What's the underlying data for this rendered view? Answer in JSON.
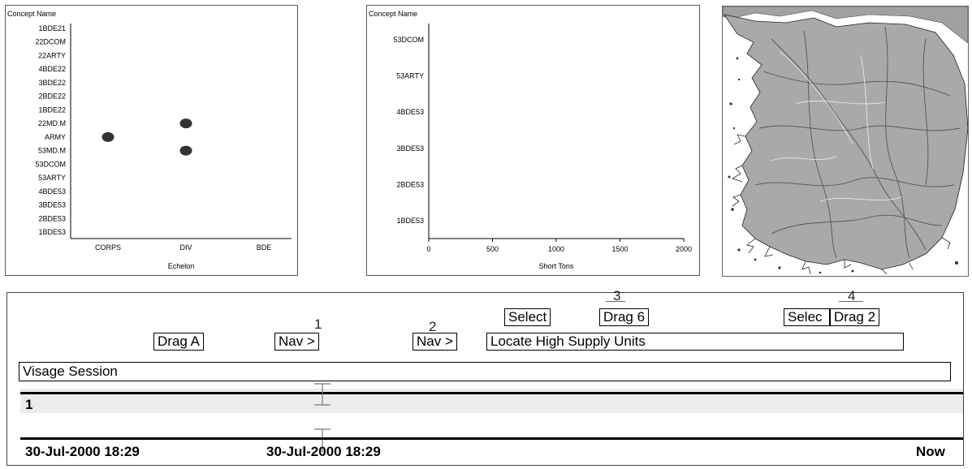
{
  "panels": {
    "scatter": {
      "corner_label": "Concept Name",
      "xlabel": "Echelon",
      "y_categories": [
        "1BDE21",
        "22DCOM",
        "22ARTY",
        "4BDE22",
        "3BDE22",
        "2BDE22",
        "1BDE22",
        "22MD.M",
        "ARMY",
        "53MD.M",
        "53DCOM",
        "53ARTY",
        "4BDE53",
        "3BDE53",
        "2BDE53",
        "1BDE53"
      ],
      "x_categories": [
        "CORPS",
        "DIV",
        "BDE"
      ]
    },
    "bar": {
      "corner_label": "Concept Name",
      "xlabel": "Short Tons",
      "y_categories": [
        "53DCOM",
        "53ARTY",
        "4BDE53",
        "3BDE53",
        "2BDE53",
        "1BDE53"
      ],
      "x_ticks": [
        "0",
        "500",
        "1000",
        "1500",
        "2000"
      ]
    },
    "map": {
      "icon": "korea-map-image"
    }
  },
  "chart_data": [
    {
      "type": "scatter",
      "corner_label": "Concept Name",
      "xlabel": "Echelon",
      "x_categories": [
        "CORPS",
        "DIV",
        "BDE"
      ],
      "y_categories": [
        "1BDE21",
        "22DCOM",
        "22ARTY",
        "4BDE22",
        "3BDE22",
        "2BDE22",
        "1BDE22",
        "22MD.M",
        "ARMY",
        "53MD.M",
        "53DCOM",
        "53ARTY",
        "4BDE53",
        "3BDE53",
        "2BDE53",
        "1BDE53"
      ],
      "points": [
        {
          "x": "CORPS",
          "y": "ARMY"
        },
        {
          "x": "DIV",
          "y": "22MD.M"
        },
        {
          "x": "DIV",
          "y": "53MD.M"
        }
      ]
    },
    {
      "type": "bar",
      "corner_label": "Concept Name",
      "xlabel": "Short Tons",
      "categories": [
        "53DCOM",
        "53ARTY",
        "4BDE53",
        "3BDE53",
        "2BDE53",
        "1BDE53"
      ],
      "values": [
        0,
        0,
        0,
        0,
        0,
        0
      ],
      "xlim": [
        0,
        2000
      ],
      "x_ticks": [
        0,
        500,
        1000,
        1500,
        2000
      ]
    }
  ],
  "history": {
    "steps": [
      {
        "number": "1"
      },
      {
        "number": "2"
      },
      {
        "number": "3"
      },
      {
        "number": "4"
      }
    ],
    "buttons": {
      "drag_a": "Drag A",
      "nav_1": "Nav >",
      "nav_2": "Nav >",
      "select": "Select",
      "drag_6": "Drag 6",
      "select_trunc": "Selec",
      "drag_2": "Drag 2"
    },
    "task_label": "Locate High Supply Units",
    "session_label": "Visage Session",
    "track_number": "1",
    "time_start": "30-Jul-2000 18:29",
    "time_cursor": "30-Jul-2000 18:29",
    "time_end": "Now"
  }
}
